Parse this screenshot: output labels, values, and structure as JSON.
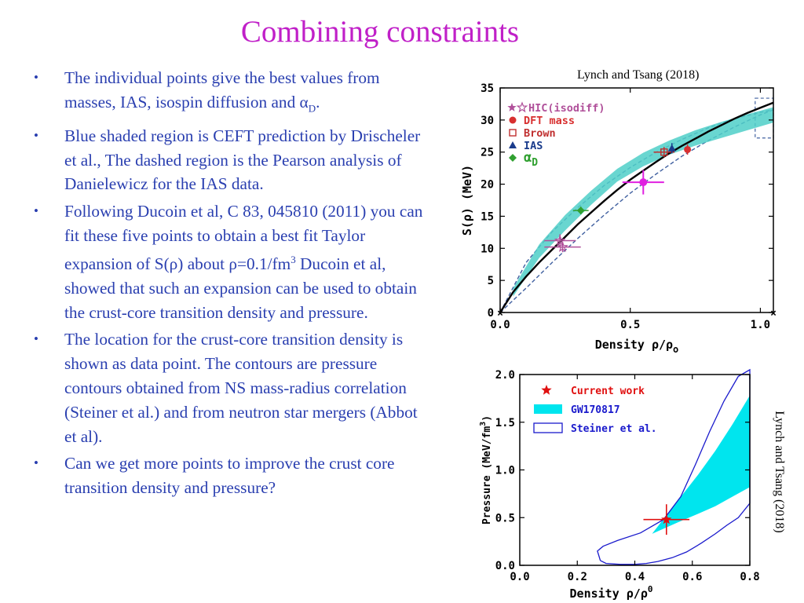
{
  "slide": {
    "title": "Combining constraints",
    "credit_top": "Lynch and Tsang (2018)",
    "credit_side": "Lynch and Tsang (2018)"
  },
  "bullets": {
    "b1": {
      "text_a": "The individual points give the best values from masses, IAS, isospin diffusion and α",
      "sub": "D",
      "text_b": "."
    },
    "b2": {
      "text": "Blue shaded region is CEFT prediction by Drischeler et al., The dashed region is the Pearson analysis of Danielewicz for the IAS data."
    },
    "b3": {
      "text_a": "Following Ducoin et al, C 83, 045810 (2011) you can fit these five points to obtain a best fit Taylor expansion of S(ρ)",
      "text_b": " about ρ=0.1/fm",
      "sup": "3",
      "text_c": " Ducoin et al, showed that such an expansion can be used to obtain the crust-core transition density and pressure."
    },
    "b4": {
      "text": "The location for the crust-core transition density is shown as data point. The contours are pressure contours obtained from NS mass-radius correlation (Steiner et al.) and from neutron star mergers (Abbot et al)."
    },
    "b5": {
      "text": "Can we get more points to improve the crust core transition density and pressure?"
    }
  },
  "chart_data": [
    {
      "type": "scatter",
      "ylabel": "S(ρ) (MeV)",
      "xlabel": "Density ρ/ρ",
      "xlabel_sub": "o",
      "xlim": [
        0,
        1.05
      ],
      "ylim": [
        0,
        35
      ],
      "xticks": [
        0.0,
        0.5,
        1.0
      ],
      "yticks": [
        0,
        5,
        10,
        15,
        20,
        25,
        30,
        35
      ],
      "xticklabels": [
        "0.0",
        "0.5",
        "1.0"
      ],
      "yticklabels": [
        "0",
        "5",
        "10",
        "15",
        "20",
        "25",
        "30",
        "35"
      ],
      "legend": [
        {
          "label": "HIC(isodiff)",
          "marker": "star",
          "color": "#b0509a"
        },
        {
          "label": "DFT mass",
          "marker": "circle",
          "color": "#d83030"
        },
        {
          "label": "Brown",
          "marker": "square-open",
          "color": "#c03030"
        },
        {
          "label": "IAS",
          "marker": "triangle",
          "color": "#1a3c8c"
        },
        {
          "label": "α",
          "label_sub": "D",
          "marker": "diamond",
          "color": "#30a030"
        }
      ],
      "points": [
        {
          "series": "HIC(isodiff)",
          "x": 0.23,
          "y": 11.2,
          "xerr": 0.06,
          "yerr": 1.0
        },
        {
          "series": "HIC(isodiff)",
          "x": 0.24,
          "y": 10.2,
          "xerr": 0.07,
          "yerr": 0.8
        },
        {
          "series": "DFT mass",
          "x": 0.72,
          "y": 25.4,
          "xerr": 0.0,
          "yerr": 0.8
        },
        {
          "series": "Brown",
          "x": 0.63,
          "y": 25.0,
          "xerr": 0.04,
          "yerr": 0.8
        },
        {
          "series": "IAS",
          "x": 0.66,
          "y": 25.6,
          "xerr": 0.0,
          "yerr": 0.8
        },
        {
          "series": "α_D",
          "x": 0.31,
          "y": 15.9,
          "xerr": 0.03,
          "yerr": 0.6
        },
        {
          "series": "magenta",
          "x": 0.55,
          "y": 20.3,
          "xerr": 0.08,
          "yerr": 1.9
        }
      ],
      "best_fit_curve": {
        "x": [
          0.0,
          0.05,
          0.1,
          0.15,
          0.2,
          0.25,
          0.3,
          0.35,
          0.4,
          0.45,
          0.5,
          0.55,
          0.6,
          0.65,
          0.7,
          0.75,
          0.8,
          0.85,
          0.9,
          0.95,
          1.0,
          1.05
        ],
        "y": [
          0.0,
          3.2,
          5.6,
          7.8,
          9.8,
          11.8,
          13.8,
          15.6,
          17.4,
          19.1,
          20.7,
          22.1,
          23.5,
          24.8,
          26.0,
          27.1,
          28.2,
          29.2,
          30.2,
          31.1,
          31.9,
          32.7
        ]
      },
      "ceft_band": {
        "x": [
          0.05,
          0.15,
          0.25,
          0.35,
          0.45,
          0.55,
          0.65,
          0.75,
          0.85,
          0.95,
          1.05
        ],
        "lower": [
          2.5,
          8.5,
          12.8,
          16.8,
          20.4,
          22.8,
          24.6,
          26.0,
          27.2,
          28.4,
          29.6
        ],
        "upper": [
          3.8,
          10.6,
          15.2,
          19.0,
          22.4,
          24.9,
          26.8,
          28.4,
          29.7,
          30.9,
          32.0
        ]
      },
      "dashed_region": {
        "x": [
          0.0,
          0.1,
          0.2,
          0.3,
          0.4,
          0.5,
          0.6,
          0.7,
          0.8,
          0.9,
          1.0,
          1.05
        ],
        "lower": [
          0.0,
          3.8,
          7.8,
          11.6,
          15.2,
          18.6,
          21.6,
          24.4,
          26.8,
          28.9,
          30.8,
          31.6
        ],
        "upper": [
          0.0,
          7.8,
          12.6,
          16.4,
          19.8,
          22.6,
          25.0,
          27.0,
          28.8,
          30.2,
          31.2,
          31.6
        ]
      },
      "dashed_box": {
        "x": [
          0.98,
          1.05
        ],
        "y": [
          27.2,
          33.4
        ]
      }
    },
    {
      "type": "scatter",
      "ylabel": "Pressure (MeV/fm",
      "ylabel_sup": "3",
      "ylabel_end": ")",
      "xlabel": "Density ρ/ρ",
      "xlabel_sup": "0",
      "xlim": [
        0,
        0.8
      ],
      "ylim": [
        0,
        2.0
      ],
      "xticks": [
        0.0,
        0.2,
        0.4,
        0.6,
        0.8
      ],
      "yticks": [
        0.0,
        0.5,
        1.0,
        1.5,
        2.0
      ],
      "xticklabels": [
        "0.0",
        "0.2",
        "0.4",
        "0.6",
        "0.8"
      ],
      "yticklabels": [
        "0.0",
        "0.5",
        "1.0",
        "1.5",
        "2.0"
      ],
      "legend": [
        {
          "label": "Current work",
          "marker": "star",
          "color": "#e01010"
        },
        {
          "label": "GW170817",
          "marker": "filled-box",
          "color": "#00e5ee"
        },
        {
          "label": "Steiner et al.",
          "marker": "open-box",
          "color": "#1a1acc"
        }
      ],
      "current_work": {
        "x": 0.51,
        "y": 0.48,
        "xerr": 0.08,
        "yerr": 0.16
      },
      "gw170817_band": {
        "x": [
          0.46,
          0.55,
          0.62,
          0.68,
          0.74,
          0.8
        ],
        "lower": [
          0.33,
          0.45,
          0.54,
          0.62,
          0.72,
          0.82
        ],
        "upper": [
          0.33,
          0.68,
          0.95,
          1.2,
          1.48,
          1.78
        ]
      },
      "steiner_contour": {
        "x": [
          0.28,
          0.27,
          0.29,
          0.34,
          0.42,
          0.5,
          0.56,
          0.61,
          0.66,
          0.71,
          0.76,
          0.8,
          0.8,
          0.76,
          0.72,
          0.68,
          0.63,
          0.58,
          0.53,
          0.48,
          0.44,
          0.4,
          0.35,
          0.3,
          0.28
        ],
        "y": [
          0.05,
          0.15,
          0.2,
          0.26,
          0.34,
          0.48,
          0.72,
          1.05,
          1.4,
          1.72,
          1.98,
          2.05,
          0.65,
          0.5,
          0.42,
          0.33,
          0.23,
          0.14,
          0.08,
          0.04,
          0.02,
          0.01,
          0.01,
          0.02,
          0.05
        ]
      }
    }
  ]
}
